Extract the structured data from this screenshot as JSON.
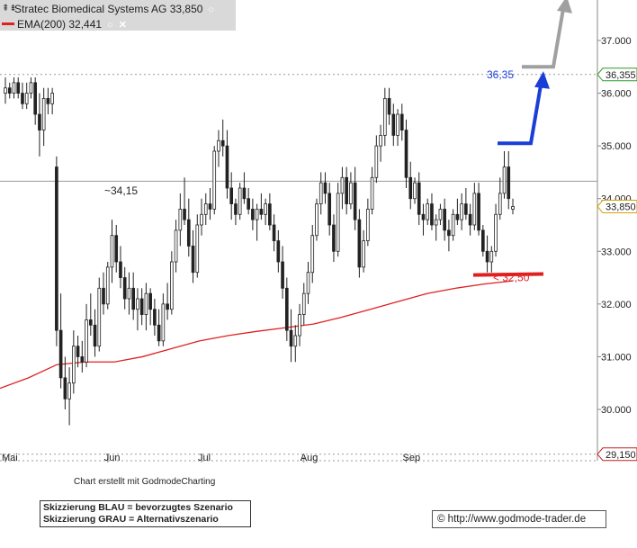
{
  "legend": {
    "icon": "candlestick-icon",
    "instrument": "Stratec Biomedical Systems AG 33,850",
    "ema": "EMA(200) 32,441",
    "ema_color": "#e02020",
    "settings_icon": "circle-settings-icon",
    "close_icon": "close-icon"
  },
  "footer": {
    "credit": "Chart erstellt mit GodmodeCharting",
    "scenario_blue": "Skizzierung BLAU = bevorzugtes Szenario",
    "scenario_gray": "Skizzierung GRAU = Alternativszenario",
    "copyright": "© http://www.godmode-trader.de"
  },
  "chart_data": {
    "type": "candlestick",
    "xlabels": [
      "Mai",
      "Jun",
      "Jul",
      "Aug",
      "Sep"
    ],
    "ylabels": [
      "37.000",
      "36.000",
      "35.000",
      "34.000",
      "33.000",
      "32.000",
      "31.000",
      "30.000"
    ],
    "ylim": [
      29.15,
      37.9
    ],
    "grid": false,
    "price_markers": [
      {
        "label": "36,355",
        "value": 36.355,
        "color": "#2a9a2a"
      },
      {
        "label": "33,850",
        "value": 33.85,
        "color": "#d8a000"
      },
      {
        "label": "29,150",
        "value": 29.15,
        "color": "#c02020"
      }
    ],
    "annotations": [
      {
        "text": "~34,15",
        "value": 34.15,
        "color": "#222222"
      },
      {
        "text": "36,35",
        "value": 36.35,
        "color": "#1a3fd8"
      },
      {
        "text": "< 32,50",
        "value": 32.5,
        "color": "#e02020"
      }
    ],
    "horizontal_lines": [
      {
        "value": 34.33,
        "color": "#999999"
      },
      {
        "value": 36.355,
        "color": "#999999",
        "dashed": true
      },
      {
        "value": 29.15,
        "color": "#999999",
        "dashed": true
      }
    ],
    "scenario_colors": {
      "preferred": "#1a3fd8",
      "alternative": "#a0a0a0",
      "support": "#e02020"
    },
    "ohlc": [
      [
        36.0,
        36.3,
        35.8,
        36.1
      ],
      [
        36.1,
        36.2,
        35.9,
        36.0
      ],
      [
        36.0,
        36.3,
        35.9,
        36.2
      ],
      [
        36.2,
        36.3,
        35.9,
        36.0
      ],
      [
        36.0,
        36.2,
        35.7,
        35.8
      ],
      [
        35.8,
        36.2,
        35.7,
        36.0
      ],
      [
        36.0,
        36.3,
        35.9,
        36.2
      ],
      [
        36.2,
        36.3,
        35.4,
        35.6
      ],
      [
        35.6,
        36.0,
        34.8,
        35.3
      ],
      [
        35.3,
        36.1,
        35.0,
        35.9
      ],
      [
        35.9,
        36.1,
        35.6,
        35.8
      ],
      [
        35.8,
        36.1,
        35.6,
        36.0
      ],
      [
        34.6,
        34.8,
        31.2,
        31.5
      ],
      [
        31.5,
        32.2,
        30.4,
        30.6
      ],
      [
        30.6,
        31.0,
        30.0,
        30.2
      ],
      [
        30.2,
        30.8,
        29.7,
        30.5
      ],
      [
        30.5,
        31.5,
        30.3,
        31.2
      ],
      [
        31.2,
        31.4,
        30.8,
        31.0
      ],
      [
        31.0,
        31.3,
        30.7,
        30.9
      ],
      [
        30.9,
        32.0,
        30.8,
        31.7
      ],
      [
        31.7,
        32.2,
        31.4,
        31.6
      ],
      [
        31.6,
        31.9,
        31.0,
        31.2
      ],
      [
        31.2,
        32.5,
        31.1,
        32.3
      ],
      [
        32.3,
        32.6,
        31.8,
        32.0
      ],
      [
        32.0,
        32.8,
        31.9,
        32.7
      ],
      [
        32.7,
        33.6,
        32.4,
        33.3
      ],
      [
        33.3,
        33.5,
        32.6,
        32.8
      ],
      [
        32.8,
        33.1,
        32.3,
        32.5
      ],
      [
        32.5,
        32.7,
        31.9,
        32.1
      ],
      [
        32.1,
        32.6,
        31.8,
        32.3
      ],
      [
        32.3,
        32.6,
        31.7,
        31.9
      ],
      [
        31.9,
        32.3,
        31.5,
        32.1
      ],
      [
        32.1,
        32.3,
        31.6,
        31.8
      ],
      [
        31.8,
        32.4,
        31.5,
        32.2
      ],
      [
        32.2,
        32.3,
        31.6,
        31.9
      ],
      [
        31.9,
        32.1,
        31.4,
        31.6
      ],
      [
        31.6,
        31.9,
        31.2,
        31.3
      ],
      [
        31.3,
        32.2,
        31.2,
        32.0
      ],
      [
        32.0,
        32.4,
        31.7,
        31.9
      ],
      [
        31.9,
        33.0,
        31.8,
        32.8
      ],
      [
        32.8,
        33.6,
        32.6,
        33.4
      ],
      [
        33.4,
        34.1,
        33.1,
        33.8
      ],
      [
        33.8,
        34.4,
        33.5,
        33.6
      ],
      [
        33.6,
        34.0,
        32.9,
        33.1
      ],
      [
        33.1,
        33.4,
        32.4,
        32.6
      ],
      [
        32.6,
        33.7,
        32.5,
        33.5
      ],
      [
        33.5,
        34.0,
        33.3,
        33.7
      ],
      [
        33.7,
        34.1,
        33.5,
        33.9
      ],
      [
        33.9,
        34.2,
        33.6,
        33.8
      ],
      [
        33.8,
        35.0,
        33.7,
        34.9
      ],
      [
        34.9,
        35.3,
        34.6,
        35.1
      ],
      [
        35.1,
        35.5,
        34.8,
        35.0
      ],
      [
        35.0,
        35.3,
        34.0,
        34.2
      ],
      [
        34.2,
        34.5,
        33.6,
        33.9
      ],
      [
        33.9,
        34.0,
        33.5,
        33.7
      ],
      [
        33.7,
        34.3,
        33.6,
        34.2
      ],
      [
        34.2,
        34.5,
        33.9,
        34.0
      ],
      [
        34.0,
        34.2,
        33.7,
        33.8
      ],
      [
        33.8,
        34.0,
        33.4,
        33.6
      ],
      [
        33.6,
        33.9,
        33.2,
        33.8
      ],
      [
        33.8,
        34.1,
        33.6,
        33.7
      ],
      [
        33.7,
        34.0,
        33.5,
        33.9
      ],
      [
        33.9,
        34.1,
        33.4,
        33.5
      ],
      [
        33.5,
        33.7,
        33.0,
        33.2
      ],
      [
        33.2,
        33.4,
        32.6,
        32.8
      ],
      [
        32.8,
        33.1,
        32.1,
        32.3
      ],
      [
        32.3,
        32.5,
        31.3,
        31.5
      ],
      [
        31.5,
        31.9,
        30.9,
        31.2
      ],
      [
        31.2,
        31.6,
        30.9,
        31.4
      ],
      [
        31.4,
        32.0,
        31.2,
        31.8
      ],
      [
        31.8,
        32.4,
        31.6,
        32.2
      ],
      [
        32.2,
        32.8,
        32.0,
        32.6
      ],
      [
        32.6,
        33.5,
        32.4,
        33.3
      ],
      [
        33.3,
        34.0,
        33.2,
        33.9
      ],
      [
        33.9,
        34.5,
        33.7,
        34.3
      ],
      [
        34.3,
        34.5,
        33.9,
        34.1
      ],
      [
        34.1,
        34.3,
        33.3,
        33.5
      ],
      [
        33.5,
        33.7,
        32.8,
        33.0
      ],
      [
        33.0,
        34.3,
        32.9,
        34.1
      ],
      [
        34.1,
        34.6,
        33.8,
        34.4
      ],
      [
        34.4,
        34.6,
        33.7,
        33.9
      ],
      [
        33.9,
        34.5,
        33.8,
        34.3
      ],
      [
        34.3,
        34.6,
        33.4,
        33.6
      ],
      [
        33.6,
        33.8,
        32.5,
        32.7
      ],
      [
        32.7,
        33.4,
        32.6,
        33.2
      ],
      [
        33.2,
        34.0,
        33.1,
        33.8
      ],
      [
        33.8,
        34.6,
        33.7,
        34.4
      ],
      [
        34.4,
        35.2,
        34.3,
        35.0
      ],
      [
        35.0,
        35.4,
        34.7,
        35.2
      ],
      [
        35.2,
        36.1,
        35.0,
        35.9
      ],
      [
        35.9,
        36.1,
        35.4,
        35.6
      ],
      [
        35.6,
        35.8,
        35.0,
        35.2
      ],
      [
        35.2,
        35.7,
        35.0,
        35.6
      ],
      [
        35.6,
        35.8,
        35.1,
        35.3
      ],
      [
        35.3,
        35.5,
        34.2,
        34.4
      ],
      [
        34.4,
        34.7,
        33.8,
        34.0
      ],
      [
        34.0,
        34.4,
        33.9,
        34.3
      ],
      [
        34.3,
        34.5,
        33.5,
        33.7
      ],
      [
        33.7,
        33.9,
        33.3,
        33.6
      ],
      [
        33.6,
        34.0,
        33.5,
        33.9
      ],
      [
        33.9,
        34.1,
        33.4,
        33.5
      ],
      [
        33.5,
        33.7,
        33.2,
        33.6
      ],
      [
        33.6,
        33.9,
        33.5,
        33.8
      ],
      [
        33.8,
        34.0,
        33.2,
        33.4
      ],
      [
        33.4,
        33.6,
        33.0,
        33.3
      ],
      [
        33.3,
        33.8,
        33.2,
        33.7
      ],
      [
        33.7,
        34.0,
        33.5,
        33.6
      ],
      [
        33.6,
        34.1,
        33.4,
        33.9
      ],
      [
        33.9,
        34.2,
        33.6,
        33.7
      ],
      [
        33.7,
        33.9,
        33.3,
        33.5
      ],
      [
        33.5,
        34.3,
        33.4,
        34.1
      ],
      [
        34.1,
        34.3,
        33.3,
        33.4
      ],
      [
        33.4,
        33.5,
        32.9,
        33.0
      ],
      [
        33.0,
        33.3,
        32.6,
        32.8
      ],
      [
        32.8,
        33.1,
        32.6,
        33.0
      ],
      [
        33.0,
        33.9,
        32.9,
        33.7
      ],
      [
        33.7,
        34.4,
        33.6,
        34.1
      ],
      [
        34.1,
        34.9,
        34.0,
        34.6
      ],
      [
        34.6,
        34.9,
        33.8,
        34.0
      ],
      [
        33.8,
        34.0,
        33.7,
        33.85
      ]
    ],
    "ema200": [
      [
        0,
        30.4
      ],
      [
        8,
        30.6
      ],
      [
        16,
        30.85
      ],
      [
        24,
        30.9
      ],
      [
        32,
        30.9
      ],
      [
        40,
        31.0
      ],
      [
        48,
        31.15
      ],
      [
        56,
        31.3
      ],
      [
        64,
        31.4
      ],
      [
        72,
        31.48
      ],
      [
        80,
        31.55
      ],
      [
        88,
        31.62
      ],
      [
        96,
        31.75
      ],
      [
        104,
        31.9
      ],
      [
        112,
        32.05
      ],
      [
        120,
        32.2
      ],
      [
        128,
        32.3
      ],
      [
        136,
        32.38
      ],
      [
        144,
        32.44
      ]
    ],
    "scenario_blue": [
      [
        35.05
      ],
      [
        35.05
      ],
      [
        36.35
      ]
    ],
    "scenario_gray": [
      [
        36.5
      ],
      [
        36.5
      ],
      [
        37.8
      ]
    ]
  }
}
